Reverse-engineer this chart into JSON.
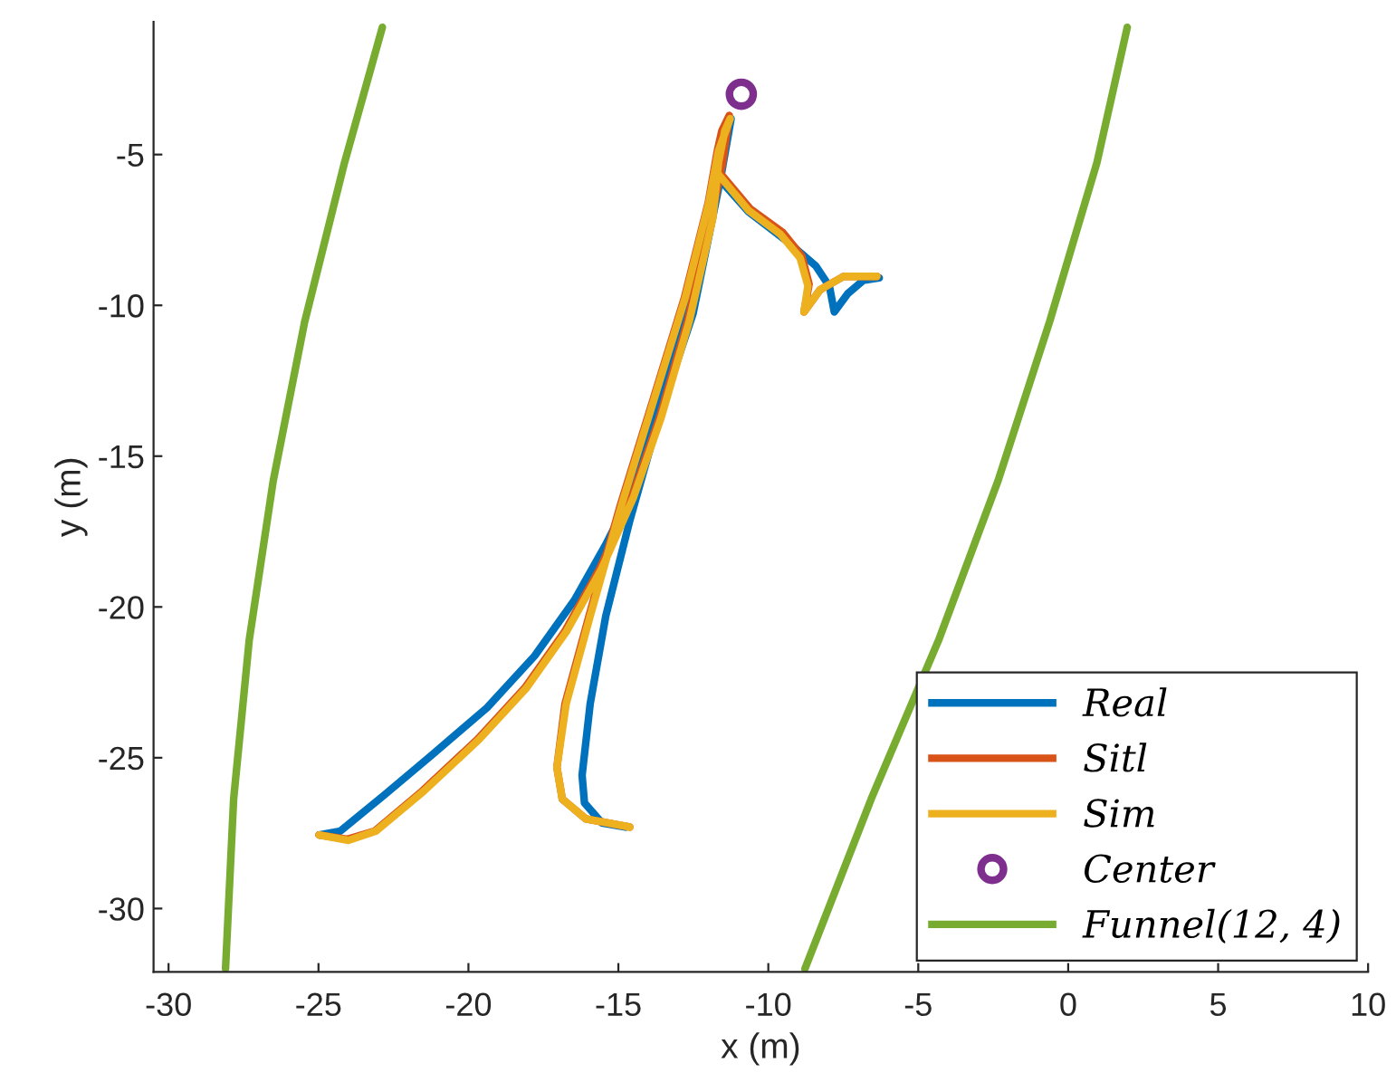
{
  "chart_data": {
    "type": "line",
    "xlabel": "x (m)",
    "ylabel": "y (m)",
    "xlim": [
      -30.5,
      10
    ],
    "ylim": [
      -32.1,
      -0.6
    ],
    "xticks": [
      -30,
      -25,
      -20,
      -15,
      -10,
      -5,
      0,
      5,
      10
    ],
    "yticks": [
      -30,
      -25,
      -20,
      -15,
      -10,
      -5
    ],
    "grid": false,
    "legend": "bottom right",
    "marker": "none",
    "line_style": "solid",
    "series": [
      {
        "name": "Real",
        "color": "#0072bd",
        "x": [
          -14.76,
          -15.55,
          -16.13,
          -16.21,
          -15.94,
          -15.42,
          -14.62,
          -13.57,
          -12.51,
          -11.59,
          -11.24,
          -11.85,
          -12.77,
          -13.7,
          -14.62,
          -15.42,
          -16.47,
          -17.79,
          -19.38,
          -21.23,
          -22.81,
          -24.27,
          -24.98,
          null,
          -11.77,
          -10.66,
          -9.33,
          -8.41,
          -7.96,
          -7.8,
          -7.35,
          -6.83,
          -6.3
        ],
        "values": [
          -27.3,
          -27.16,
          -26.5,
          -25.58,
          -23.21,
          -20.3,
          -17.14,
          -13.44,
          -10.28,
          -5.79,
          -3.81,
          -6.58,
          -10.01,
          -13.18,
          -16.35,
          -17.93,
          -19.78,
          -21.62,
          -23.34,
          -24.92,
          -26.24,
          -27.43,
          -27.56,
          null,
          -5.66,
          -6.9,
          -7.91,
          -8.7,
          -9.38,
          -10.22,
          -9.61,
          -9.17,
          -9.09
        ]
      },
      {
        "name": "Sitl",
        "color": "#d95319",
        "x": [
          -14.62,
          -16.08,
          -16.87,
          -17.05,
          -16.78,
          -15.98,
          -14.93,
          -13.86,
          -12.8,
          -12.0,
          -11.7,
          -11.55,
          -11.3,
          -11.52,
          -11.9,
          -12.7,
          -13.63,
          -14.55,
          -15.62,
          -16.8,
          -18.12,
          -19.7,
          -21.55,
          -23.12,
          -24.03,
          -24.98,
          null,
          -11.7,
          -10.6,
          -9.52,
          -8.88,
          -8.64,
          -8.81,
          -8.28,
          -7.49,
          -6.38
        ],
        "values": [
          -27.3,
          -27.03,
          -26.37,
          -25.32,
          -23.21,
          -20.3,
          -16.61,
          -13.18,
          -9.75,
          -6.58,
          -4.87,
          -4.21,
          -3.7,
          -5.26,
          -7.11,
          -10.54,
          -13.71,
          -16.35,
          -18.72,
          -20.83,
          -22.68,
          -24.39,
          -26.11,
          -27.43,
          -27.7,
          -27.56,
          null,
          -5.5,
          -6.8,
          -7.58,
          -8.37,
          -9.3,
          -10.22,
          -9.49,
          -9.04,
          -9.04
        ]
      },
      {
        "name": "Sim",
        "color": "#edb120",
        "x": [
          -14.62,
          -16.08,
          -16.87,
          -17.05,
          -16.74,
          -15.94,
          -14.89,
          -13.83,
          -12.77,
          -11.98,
          -11.66,
          -11.27,
          -11.45,
          -11.66,
          -11.85,
          -12.64,
          -13.57,
          -14.49,
          -15.55,
          -16.74,
          -18.06,
          -19.64,
          -21.49,
          -23.08,
          -24.0,
          -24.98,
          null,
          -11.77,
          -10.66,
          -9.6,
          -8.94,
          -8.68,
          -8.81,
          -8.28,
          -7.49,
          -6.38
        ],
        "values": [
          -27.3,
          -27.03,
          -26.37,
          -25.32,
          -23.21,
          -20.3,
          -16.61,
          -13.18,
          -9.75,
          -6.58,
          -4.87,
          -3.81,
          -4.21,
          -5.26,
          -7.11,
          -10.54,
          -13.71,
          -16.35,
          -18.72,
          -20.83,
          -22.68,
          -24.39,
          -26.11,
          -27.43,
          -27.74,
          -27.56,
          null,
          -5.53,
          -6.85,
          -7.64,
          -8.43,
          -9.35,
          -10.22,
          -9.49,
          -9.04,
          -9.04
        ]
      },
      {
        "name": "Center",
        "type": "scatter",
        "marker": "circle",
        "color": "#7e2f8e",
        "x": [
          -10.9
        ],
        "values": [
          -3.0
        ]
      },
      {
        "name": "Funnel(12, 4)",
        "color": "#77ac30",
        "x": [
          -22.87,
          -24.13,
          -25.46,
          -26.51,
          -27.31,
          -27.83,
          -28.1,
          null,
          1.97,
          0.96,
          -0.62,
          -2.34,
          -4.32,
          -6.57,
          -8.78
        ],
        "values": [
          -0.78,
          -5.26,
          -10.54,
          -15.82,
          -21.1,
          -26.37,
          -32.0,
          null,
          -0.78,
          -5.26,
          -10.54,
          -15.82,
          -21.1,
          -26.37,
          -32.0
        ]
      }
    ]
  }
}
